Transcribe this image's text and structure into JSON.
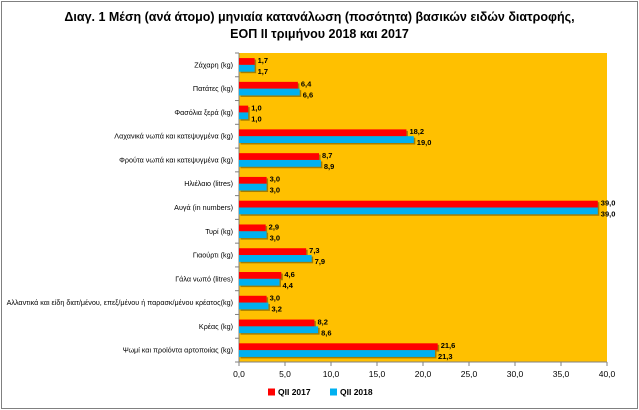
{
  "title": "Διαγ. 1  Μέση (ανά άτομο) μηνιαία κατανάλωση (ποσότητα) βασικών ειδών διατροφής,\nΕΟΠ ΙΙ τριμήνου 2018 και 2017",
  "chart_data": {
    "type": "bar",
    "orientation": "horizontal",
    "title": "Διαγ. 1  Μέση (ανά άτομο) μηνιαία κατανάλωση (ποσότητα) βασικών ειδών διατροφής, ΕΟΠ ΙΙ τριμήνου 2018 και 2017",
    "categories": [
      "Ζάχαρη (kg)",
      "Πατάτες (kg)",
      "Φασόλια ξερά (kg)",
      "Λαχανικά νωπά και κατεψυγμένα (kg)",
      "Φρούτα νωπά και κατεψυγμένα (kg)",
      "Ηλιέλαιο (litres)",
      "Αυγά (in numbers)",
      "Τυρί (kg)",
      "Γιαούρτι (kg)",
      "Γάλα νωπό (litres)",
      "Αλλαντικά και είδη διατ/μένου, επεξ/μένου ή παρασκ/μένου κρέατος(kg)",
      "Κρέας (kg)",
      "Ψωμί και προϊόντα αρτοποιίας (kg)"
    ],
    "series": [
      {
        "name": "QII 2017",
        "color": "#ff0000",
        "values": [
          1.7,
          6.4,
          1.0,
          18.2,
          8.7,
          3.0,
          39.0,
          2.9,
          7.3,
          4.6,
          3.0,
          8.2,
          21.6
        ],
        "labels": [
          "1,7",
          "6,4",
          "1,0",
          "18,2",
          "8,7",
          "3,0",
          "39,0",
          "2,9",
          "7,3",
          "4,6",
          "3,0",
          "8,2",
          "21,6"
        ]
      },
      {
        "name": "QII 2018",
        "color": "#00b0f0",
        "values": [
          1.7,
          6.6,
          1.0,
          19.0,
          8.9,
          3.0,
          39.0,
          3.0,
          7.9,
          4.4,
          3.2,
          8.6,
          21.3
        ],
        "labels": [
          "1,7",
          "6,6",
          "1,0",
          "19,0",
          "8,9",
          "3,0",
          "39,0",
          "3,0",
          "7,9",
          "4,4",
          "3,2",
          "8,6",
          "21,3"
        ]
      }
    ],
    "xlim": [
      0,
      40
    ],
    "xticks": [
      "0,0",
      "5,0",
      "10,0",
      "15,0",
      "20,0",
      "25,0",
      "30,0",
      "35,0",
      "40,0"
    ],
    "grid": false,
    "legend_position": "bottom",
    "plot_background": "#ffc000"
  }
}
